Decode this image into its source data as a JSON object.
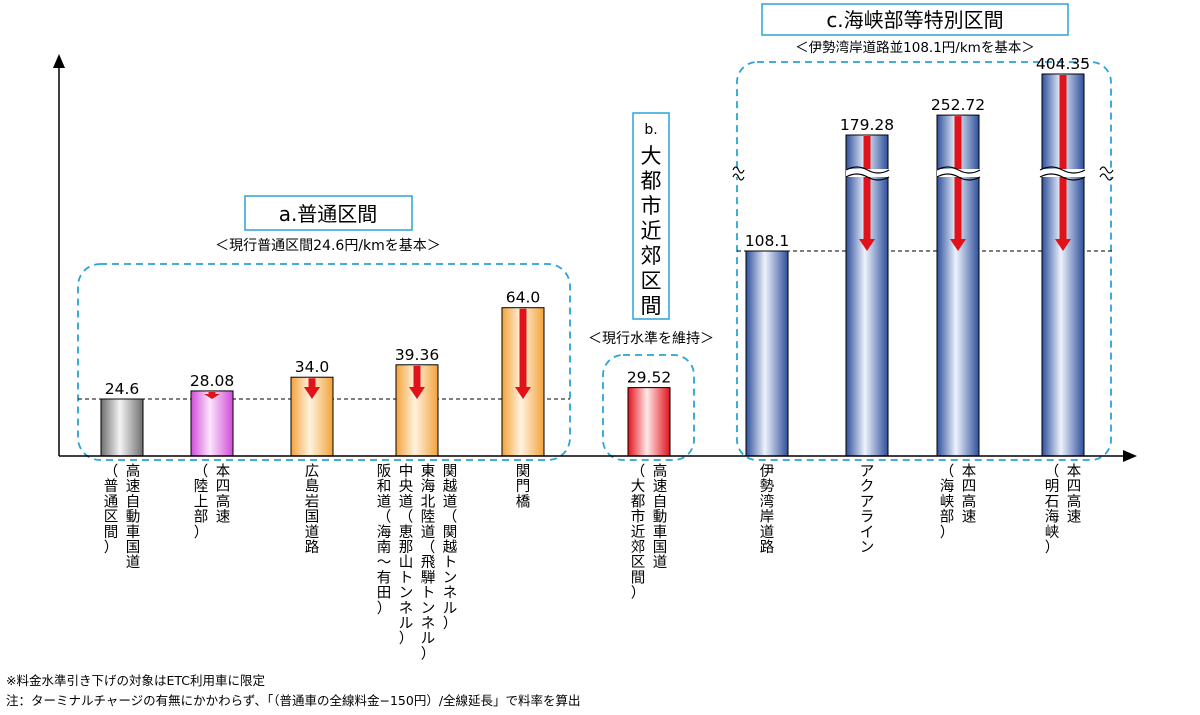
{
  "chart_data": {
    "type": "bar",
    "bars": [
      {
        "label": "高速自動車国道",
        "sub": "（普通区間）",
        "value": 24.6,
        "value_label": "24.6",
        "style": "gray",
        "group": "a"
      },
      {
        "label": "本四高速",
        "sub": "（陸上部）",
        "value": 28.08,
        "value_label": "28.08",
        "style": "pink",
        "group": "a"
      },
      {
        "label": "広島岩国道路",
        "sub": "",
        "value": 34.0,
        "value_label": "34.0",
        "style": "orange",
        "group": "a"
      },
      {
        "label": "関越道（関越トンネル）|東海北陸道（飛騨トンネル）|中央道（恵那山トンネル）|阪和道（海南～有田）",
        "sub": "",
        "value": 39.36,
        "value_label": "39.36",
        "style": "orange",
        "group": "a"
      },
      {
        "label": "関門橋",
        "sub": "",
        "value": 64.0,
        "value_label": "64.0",
        "style": "orange",
        "group": "a"
      },
      {
        "label": "高速自動車国道",
        "sub": "（大都市近郊区間）",
        "value": 29.52,
        "value_label": "29.52",
        "style": "red",
        "group": "b"
      },
      {
        "label": "伊勢湾岸道路",
        "sub": "",
        "value": 108.1,
        "value_label": "108.1",
        "style": "blue",
        "group": "c"
      },
      {
        "label": "アクアライン",
        "sub": "",
        "value": 179.28,
        "value_label": "179.28",
        "style": "blue",
        "group": "c"
      },
      {
        "label": "本四高速",
        "sub": "（海峡部）",
        "value": 252.72,
        "value_label": "252.72",
        "style": "blue",
        "group": "c"
      },
      {
        "label": "本四高速",
        "sub": "（明石海峡）",
        "value": 404.35,
        "value_label": "404.35",
        "style": "blue",
        "group": "c"
      }
    ],
    "groups": {
      "a": {
        "title": "a.普通区間",
        "subtitle": "＜現行普通区間24.6円/kmを基本＞"
      },
      "b": {
        "title_prefix": "b.",
        "title": "大都市近郊区間",
        "subtitle": "＜現行水準を維持＞"
      },
      "c": {
        "title": "c.海峡部等特別区間",
        "subtitle": "＜伊勢湾岸道路並108.1円/kmを基本＞"
      }
    },
    "reference_lines": [
      24.6,
      108.1
    ],
    "axis_break": true,
    "arrows": "red down arrows from bar top to reference level"
  },
  "notes": [
    "※料金水準引き下げの対象はETC利用車に限定",
    "注：ターミナルチャージの有無にかかわらず、「（普通車の全線料金−150円）/全線延長」で料率を算出"
  ]
}
